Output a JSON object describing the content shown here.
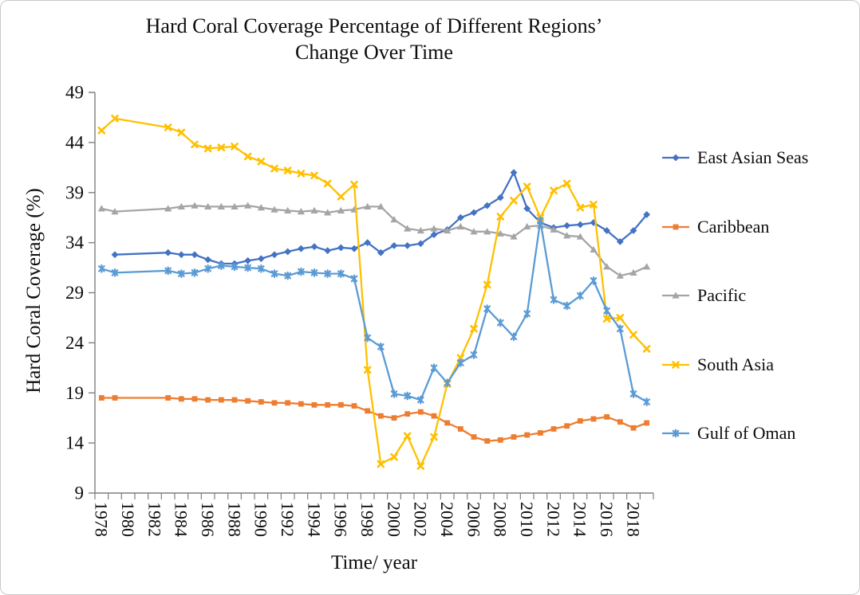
{
  "title": {
    "line1": "Hard Coral Coverage Percentage of Different Regions’",
    "line2": "Change Over Time"
  },
  "y_axis": {
    "label": "Hard Coral Coverage (%)",
    "min": 9,
    "max": 49,
    "tick_step": 5,
    "ticks": [
      9,
      14,
      19,
      24,
      29,
      34,
      39,
      44,
      49
    ]
  },
  "x_axis": {
    "label": "Time/ year",
    "tick_labels": [
      "1978",
      "1980",
      "1982",
      "1984",
      "1986",
      "1988",
      "1990",
      "1992",
      "1994",
      "1996",
      "1998",
      "2000",
      "2002",
      "2004",
      "2006",
      "2008",
      "2010",
      "2012",
      "2014",
      "2016",
      "2018"
    ]
  },
  "legend": {
    "position": "right"
  },
  "chart_data": {
    "type": "line",
    "title": "Hard Coral Coverage Percentage of Different Regions’ Change Over Time",
    "xlabel": "Time/ year",
    "ylabel": "Hard Coral Coverage (%)",
    "ylim": [
      9,
      49
    ],
    "grid": false,
    "legend_position": "right",
    "x": [
      1978,
      1979,
      1980,
      1981,
      1982,
      1983,
      1984,
      1985,
      1986,
      1987,
      1988,
      1989,
      1990,
      1991,
      1992,
      1993,
      1994,
      1995,
      1996,
      1997,
      1998,
      1999,
      2000,
      2001,
      2002,
      2003,
      2004,
      2005,
      2006,
      2007,
      2008,
      2009,
      2010,
      2011,
      2012,
      2013,
      2014,
      2015,
      2016,
      2017,
      2018,
      2019
    ],
    "series": [
      {
        "name": "East Asian Seas",
        "color": "#4472C4",
        "marker": "diamond",
        "values": [
          null,
          32.8,
          null,
          null,
          null,
          33.0,
          32.8,
          32.8,
          32.3,
          31.9,
          31.9,
          32.2,
          32.4,
          32.8,
          33.1,
          33.4,
          33.6,
          33.2,
          33.5,
          33.4,
          34.0,
          33.0,
          33.7,
          33.7,
          33.9,
          34.8,
          35.3,
          36.5,
          37.0,
          37.7,
          38.5,
          41.0,
          37.4,
          36.0,
          35.5,
          35.7,
          35.8,
          36.0,
          35.2,
          34.1,
          35.2,
          36.8
        ]
      },
      {
        "name": "Caribbean",
        "color": "#ED7D31",
        "marker": "square",
        "values": [
          18.5,
          18.5,
          null,
          null,
          null,
          18.5,
          18.4,
          18.4,
          18.3,
          18.3,
          18.3,
          18.2,
          18.1,
          18.0,
          18.0,
          17.9,
          17.8,
          17.8,
          17.8,
          17.7,
          17.2,
          16.7,
          16.5,
          16.9,
          17.1,
          16.7,
          16.0,
          15.4,
          14.6,
          14.2,
          14.3,
          14.6,
          14.8,
          15.0,
          15.4,
          15.7,
          16.2,
          16.4,
          16.6,
          16.1,
          15.5,
          16.0
        ]
      },
      {
        "name": "Pacific",
        "color": "#A5A5A5",
        "marker": "triangle",
        "values": [
          37.4,
          37.1,
          null,
          null,
          null,
          37.4,
          37.6,
          37.7,
          37.6,
          37.6,
          37.6,
          37.7,
          37.5,
          37.3,
          37.2,
          37.1,
          37.2,
          37.0,
          37.2,
          37.3,
          37.6,
          37.6,
          36.3,
          35.4,
          35.2,
          35.4,
          35.2,
          35.6,
          35.1,
          35.1,
          34.9,
          34.6,
          35.6,
          35.7,
          35.3,
          34.7,
          34.6,
          33.3,
          31.6,
          30.7,
          31.0,
          31.6
        ]
      },
      {
        "name": "South Asia",
        "color": "#FFC000",
        "marker": "x",
        "values": [
          45.2,
          46.4,
          null,
          null,
          null,
          45.5,
          45.0,
          43.8,
          43.4,
          43.5,
          43.6,
          42.6,
          42.1,
          41.4,
          41.2,
          40.9,
          40.7,
          39.9,
          38.6,
          39.8,
          21.3,
          11.9,
          12.6,
          14.7,
          11.7,
          14.6,
          19.9,
          22.5,
          25.4,
          29.8,
          36.6,
          38.2,
          39.6,
          36.5,
          39.2,
          39.9,
          37.5,
          37.8,
          26.4,
          26.5,
          24.8,
          23.4
        ]
      },
      {
        "name": "Gulf of Oman",
        "color": "#5B9BD5",
        "marker": "star",
        "values": [
          31.4,
          31.0,
          null,
          null,
          null,
          31.2,
          30.9,
          31.0,
          31.4,
          31.7,
          31.6,
          31.5,
          31.4,
          30.9,
          30.7,
          31.1,
          31.0,
          30.9,
          30.9,
          30.4,
          24.5,
          23.6,
          18.9,
          18.7,
          18.3,
          21.5,
          20.0,
          22.0,
          22.8,
          27.4,
          26.0,
          24.6,
          26.9,
          36.2,
          28.3,
          27.7,
          28.7,
          30.2,
          27.2,
          25.4,
          18.9,
          18.1
        ]
      }
    ]
  }
}
